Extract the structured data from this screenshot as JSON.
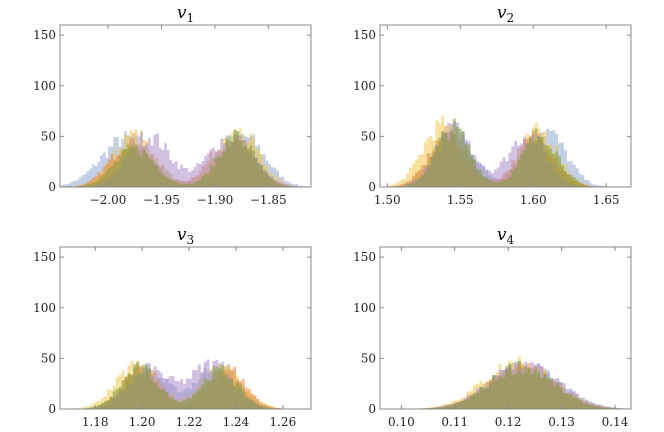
{
  "chart_data": [
    {
      "type": "histogram",
      "title": "v",
      "title_subscript": "1",
      "xlim": [
        -2.045,
        -1.81
      ],
      "ylim": [
        0,
        160
      ],
      "xticks": [
        -2.0,
        -1.95,
        -1.9,
        -1.85
      ],
      "xtick_labels": [
        "−2.00",
        "−1.95",
        "−1.90",
        "−1.85"
      ],
      "yticks": [
        0,
        50,
        100,
        150
      ],
      "ytick_labels": [
        "0",
        "50",
        "100",
        "150"
      ],
      "bin_width": 0.0025,
      "series": [
        {
          "color": "#8fa8d4",
          "modes": [
            {
              "mean": -1.982,
              "sd": 0.024,
              "peak": 48
            },
            {
              "mean": -1.873,
              "sd": 0.02,
              "peak": 50
            }
          ]
        },
        {
          "color": "#f2c84b",
          "modes": [
            {
              "mean": -1.975,
              "sd": 0.02,
              "peak": 50
            },
            {
              "mean": -1.878,
              "sd": 0.019,
              "peak": 54
            }
          ]
        },
        {
          "color": "#e8893a",
          "modes": [
            {
              "mean": -1.978,
              "sd": 0.019,
              "peak": 46
            },
            {
              "mean": -1.885,
              "sd": 0.02,
              "peak": 46
            }
          ]
        },
        {
          "color": "#a98cc9",
          "modes": [
            {
              "mean": -1.962,
              "sd": 0.02,
              "peak": 50
            },
            {
              "mean": -1.885,
              "sd": 0.021,
              "peak": 50
            }
          ]
        },
        {
          "color": "#7f9a3a",
          "modes": [
            {
              "mean": -1.975,
              "sd": 0.019,
              "peak": 38
            },
            {
              "mean": -1.88,
              "sd": 0.017,
              "peak": 50
            }
          ]
        }
      ]
    },
    {
      "type": "histogram",
      "title": "v",
      "title_subscript": "2",
      "xlim": [
        1.495,
        1.667
      ],
      "ylim": [
        0,
        160
      ],
      "xticks": [
        1.5,
        1.55,
        1.6,
        1.65
      ],
      "xtick_labels": [
        "1.50",
        "1.55",
        "1.60",
        "1.65"
      ],
      "yticks": [
        0,
        50,
        100,
        150
      ],
      "ytick_labels": [
        "0",
        "50",
        "100",
        "150"
      ],
      "bin_width": 0.002,
      "series": [
        {
          "color": "#8fa8d4",
          "modes": [
            {
              "mean": 1.545,
              "sd": 0.014,
              "peak": 56
            },
            {
              "mean": 1.608,
              "sd": 0.014,
              "peak": 56
            }
          ]
        },
        {
          "color": "#f2c84b",
          "modes": [
            {
              "mean": 1.537,
              "sd": 0.013,
              "peak": 60
            },
            {
              "mean": 1.604,
              "sd": 0.013,
              "peak": 55
            }
          ]
        },
        {
          "color": "#e8893a",
          "modes": [
            {
              "mean": 1.542,
              "sd": 0.013,
              "peak": 52
            },
            {
              "mean": 1.602,
              "sd": 0.013,
              "peak": 50
            }
          ]
        },
        {
          "color": "#a98cc9",
          "modes": [
            {
              "mean": 1.546,
              "sd": 0.013,
              "peak": 56
            },
            {
              "mean": 1.596,
              "sd": 0.013,
              "peak": 52
            }
          ]
        },
        {
          "color": "#7f9a3a",
          "modes": [
            {
              "mean": 1.545,
              "sd": 0.012,
              "peak": 58
            },
            {
              "mean": 1.605,
              "sd": 0.012,
              "peak": 52
            }
          ]
        }
      ]
    },
    {
      "type": "histogram",
      "title": "v",
      "title_subscript": "3",
      "xlim": [
        1.165,
        1.272
      ],
      "ylim": [
        0,
        160
      ],
      "xticks": [
        1.18,
        1.2,
        1.22,
        1.24,
        1.26
      ],
      "xtick_labels": [
        "1.18",
        "1.20",
        "1.22",
        "1.24",
        "1.26"
      ],
      "yticks": [
        0,
        50,
        100,
        150
      ],
      "ytick_labels": [
        "0",
        "50",
        "100",
        "150"
      ],
      "bin_width": 0.00125,
      "series": [
        {
          "color": "#8fa8d4",
          "modes": [
            {
              "mean": 1.201,
              "sd": 0.009,
              "peak": 40
            },
            {
              "mean": 1.232,
              "sd": 0.009,
              "peak": 42
            }
          ]
        },
        {
          "color": "#f2c84b",
          "modes": [
            {
              "mean": 1.198,
              "sd": 0.009,
              "peak": 44
            },
            {
              "mean": 1.234,
              "sd": 0.009,
              "peak": 40
            }
          ]
        },
        {
          "color": "#e8893a",
          "modes": [
            {
              "mean": 1.2,
              "sd": 0.008,
              "peak": 38
            },
            {
              "mean": 1.236,
              "sd": 0.008,
              "peak": 40
            }
          ]
        },
        {
          "color": "#a98cc9",
          "modes": [
            {
              "mean": 1.203,
              "sd": 0.009,
              "peak": 38
            },
            {
              "mean": 1.23,
              "sd": 0.009,
              "peak": 44
            }
          ]
        },
        {
          "color": "#7f9a3a",
          "modes": [
            {
              "mean": 1.199,
              "sd": 0.008,
              "peak": 40
            },
            {
              "mean": 1.233,
              "sd": 0.008,
              "peak": 38
            }
          ]
        }
      ]
    },
    {
      "type": "histogram",
      "title": "v",
      "title_subscript": "4",
      "xlim": [
        0.096,
        0.143
      ],
      "ylim": [
        0,
        160
      ],
      "xticks": [
        0.1,
        0.11,
        0.12,
        0.13,
        0.14
      ],
      "xtick_labels": [
        "0.10",
        "0.11",
        "0.12",
        "0.13",
        "0.14"
      ],
      "yticks": [
        0,
        50,
        100,
        150
      ],
      "ytick_labels": [
        "0",
        "50",
        "100",
        "150"
      ],
      "bin_width": 0.0006,
      "series": [
        {
          "color": "#8fa8d4",
          "modes": [
            {
              "mean": 0.123,
              "sd": 0.0065,
              "peak": 42
            }
          ]
        },
        {
          "color": "#f2c84b",
          "modes": [
            {
              "mean": 0.122,
              "sd": 0.0065,
              "peak": 46
            }
          ]
        },
        {
          "color": "#e8893a",
          "modes": [
            {
              "mean": 0.1225,
              "sd": 0.0062,
              "peak": 40
            }
          ]
        },
        {
          "color": "#a98cc9",
          "modes": [
            {
              "mean": 0.123,
              "sd": 0.0064,
              "peak": 44
            }
          ]
        },
        {
          "color": "#7f9a3a",
          "modes": [
            {
              "mean": 0.1225,
              "sd": 0.006,
              "peak": 42
            }
          ]
        }
      ]
    }
  ]
}
